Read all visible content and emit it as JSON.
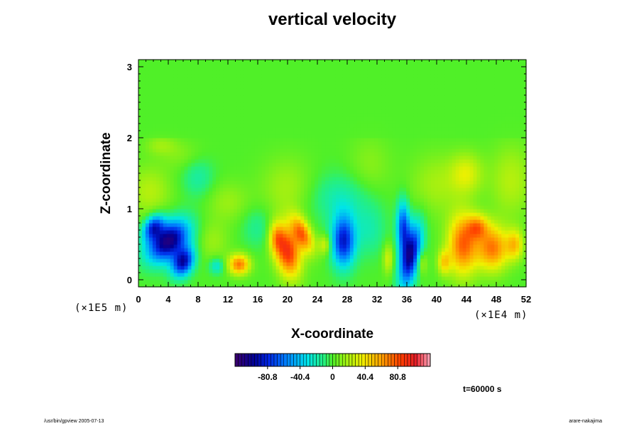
{
  "chart_data": {
    "type": "heatmap",
    "title": "vertical velocity",
    "xlabel": "X-coordinate",
    "ylabel": "Z-coordinate",
    "x_scale_note": "(×1E4 m)",
    "z_scale_note": "(×1E5 m)",
    "xlim": [
      0,
      52
    ],
    "ylim": [
      -0.1,
      3.1
    ],
    "x_ticks": [
      0,
      4,
      8,
      12,
      16,
      20,
      24,
      28,
      32,
      36,
      40,
      44,
      48,
      52
    ],
    "y_ticks": [
      0,
      1,
      2,
      3
    ],
    "colorbar": {
      "min": -121.2,
      "max": 121.2,
      "tick_values": [
        -80.8,
        -40.4,
        0,
        40.4,
        80.8
      ],
      "tick_labels": [
        "-80.8",
        "-40.4",
        "0",
        "40.4",
        "80.8"
      ]
    },
    "features": [
      {
        "x": 4.0,
        "z": 0.55,
        "sx": 1.8,
        "sz": 0.2,
        "tilt": -0.9,
        "value": -110
      },
      {
        "x": 6.0,
        "z": 0.25,
        "sx": 1.0,
        "sz": 0.14,
        "tilt": -0.5,
        "value": -90
      },
      {
        "x": 2.0,
        "z": 0.75,
        "sx": 0.9,
        "sz": 0.12,
        "tilt": -0.6,
        "value": -70
      },
      {
        "x": 13.5,
        "z": 0.22,
        "sx": 1.0,
        "sz": 0.1,
        "tilt": 0,
        "value": 70
      },
      {
        "x": 10.5,
        "z": 0.2,
        "sx": 0.7,
        "sz": 0.08,
        "tilt": 0,
        "value": -30
      },
      {
        "x": 20.0,
        "z": 0.4,
        "sx": 1.2,
        "sz": 0.25,
        "tilt": 0.3,
        "value": 90
      },
      {
        "x": 22.0,
        "z": 0.65,
        "sx": 0.9,
        "sz": 0.18,
        "tilt": 0.8,
        "value": 70
      },
      {
        "x": 18.5,
        "z": 0.6,
        "sx": 0.7,
        "sz": 0.15,
        "tilt": 0,
        "value": 40
      },
      {
        "x": 25.0,
        "z": 0.5,
        "sx": 0.6,
        "sz": 0.1,
        "tilt": 0,
        "value": 30
      },
      {
        "x": 27.5,
        "z": 0.55,
        "sx": 1.1,
        "sz": 0.25,
        "tilt": 0,
        "value": -85
      },
      {
        "x": 36.5,
        "z": 0.35,
        "sx": 0.9,
        "sz": 0.3,
        "tilt": -0.4,
        "value": -100
      },
      {
        "x": 35.5,
        "z": 0.75,
        "sx": 0.6,
        "sz": 0.25,
        "tilt": 0,
        "value": -70
      },
      {
        "x": 33.5,
        "z": 0.3,
        "sx": 0.5,
        "sz": 0.15,
        "tilt": 0,
        "value": 30
      },
      {
        "x": 38.0,
        "z": 0.25,
        "sx": 0.5,
        "sz": 0.12,
        "tilt": 0,
        "value": 25
      },
      {
        "x": 43.5,
        "z": 0.5,
        "sx": 1.4,
        "sz": 0.3,
        "tilt": 0,
        "value": 75
      },
      {
        "x": 47.5,
        "z": 0.45,
        "sx": 1.5,
        "sz": 0.22,
        "tilt": 0,
        "value": 70
      },
      {
        "x": 45.5,
        "z": 0.75,
        "sx": 1.0,
        "sz": 0.12,
        "tilt": 0,
        "value": 50
      },
      {
        "x": 50.5,
        "z": 0.5,
        "sx": 0.8,
        "sz": 0.15,
        "tilt": 0,
        "value": 45
      },
      {
        "x": 41.0,
        "z": 0.25,
        "sx": 0.6,
        "sz": 0.12,
        "tilt": 0,
        "value": 40
      },
      {
        "x": 1.5,
        "z": 1.25,
        "sx": 2.0,
        "sz": 0.25,
        "tilt": 0,
        "value": 22
      },
      {
        "x": 8.0,
        "z": 1.45,
        "sx": 1.5,
        "sz": 0.2,
        "tilt": 0,
        "value": -18
      },
      {
        "x": 12.0,
        "z": 1.1,
        "sx": 2.0,
        "sz": 0.2,
        "tilt": 0,
        "value": 15
      },
      {
        "x": 20.0,
        "z": 1.3,
        "sx": 2.5,
        "sz": 0.3,
        "tilt": 0,
        "value": 18
      },
      {
        "x": 27.0,
        "z": 1.15,
        "sx": 3.0,
        "sz": 0.25,
        "tilt": 0,
        "value": -20
      },
      {
        "x": 31.0,
        "z": 1.6,
        "sx": 2.0,
        "sz": 0.3,
        "tilt": 0,
        "value": 12
      },
      {
        "x": 40.0,
        "z": 1.35,
        "sx": 2.5,
        "sz": 0.3,
        "tilt": 0,
        "value": 18
      },
      {
        "x": 44.0,
        "z": 1.5,
        "sx": 1.5,
        "sz": 0.2,
        "tilt": 0,
        "value": 30
      },
      {
        "x": 50.0,
        "z": 1.4,
        "sx": 2.0,
        "sz": 0.35,
        "tilt": 0,
        "value": 22
      },
      {
        "x": 6.0,
        "z": 1.75,
        "sx": 2.0,
        "sz": 0.15,
        "tilt": 0,
        "value": 10
      },
      {
        "x": 16.0,
        "z": 0.75,
        "sx": 1.5,
        "sz": 0.2,
        "tilt": 0,
        "value": -15
      },
      {
        "x": 31.0,
        "z": 0.7,
        "sx": 1.5,
        "sz": 0.25,
        "tilt": 0,
        "value": -18
      },
      {
        "x": 10.0,
        "z": 0.55,
        "sx": 1.5,
        "sz": 0.2,
        "tilt": 0,
        "value": 15
      },
      {
        "x": 3.0,
        "z": 1.9,
        "sx": 1.5,
        "sz": 0.1,
        "tilt": 0,
        "value": 15
      }
    ]
  },
  "time_label": "t=60000 s",
  "footer_left": "/usr/bin/gpview 2005-07-13",
  "footer_right": "arare-nakajima"
}
